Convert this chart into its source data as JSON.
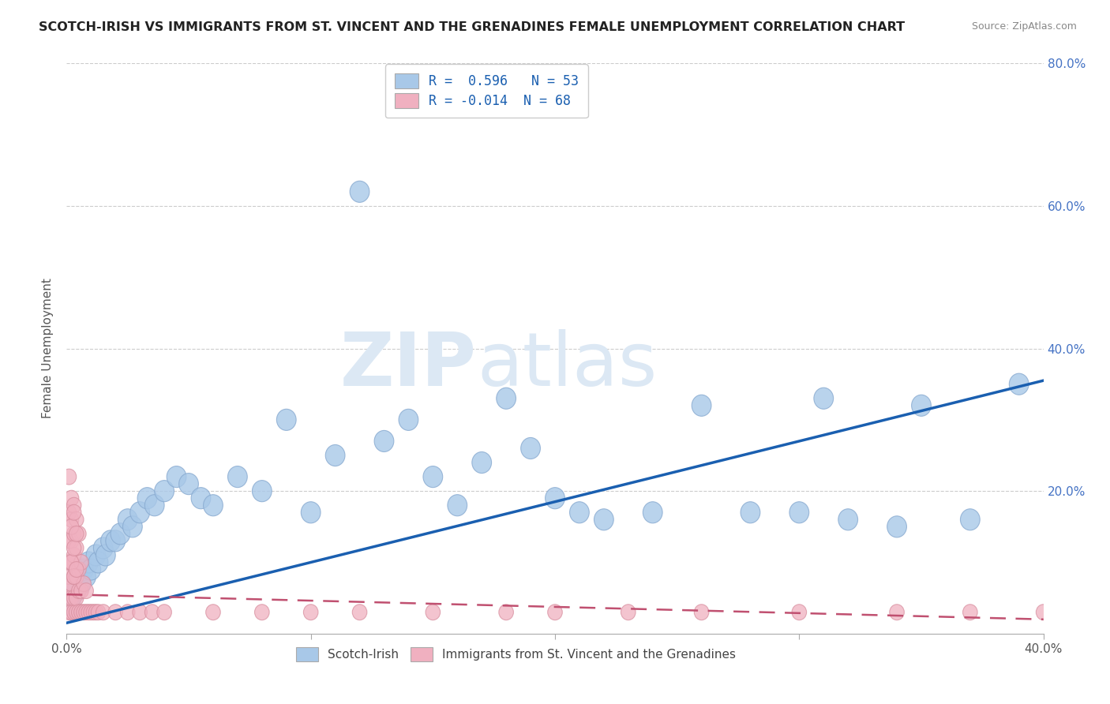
{
  "title": "SCOTCH-IRISH VS IMMIGRANTS FROM ST. VINCENT AND THE GRENADINES FEMALE UNEMPLOYMENT CORRELATION CHART",
  "source": "Source: ZipAtlas.com",
  "ylabel": "Female Unemployment",
  "xlim": [
    0.0,
    0.4
  ],
  "ylim": [
    0.0,
    0.8
  ],
  "ytick_vals": [
    0.0,
    0.2,
    0.4,
    0.6,
    0.8
  ],
  "ytick_labels": [
    "",
    "20.0%",
    "40.0%",
    "60.0%",
    "80.0%"
  ],
  "xtick_vals": [
    0.0,
    0.1,
    0.2,
    0.3,
    0.4
  ],
  "blue_R": 0.596,
  "blue_N": 53,
  "pink_R": -0.014,
  "pink_N": 68,
  "blue_color": "#a8c8e8",
  "blue_edge_color": "#88aad0",
  "blue_line_color": "#1a5fb0",
  "pink_color": "#f0b0c0",
  "pink_edge_color": "#d890a0",
  "pink_line_color": "#c05070",
  "legend_label_blue": "Scotch-Irish",
  "legend_label_pink": "Immigrants from St. Vincent and the Grenadines",
  "blue_scatter_x": [
    0.001,
    0.002,
    0.003,
    0.004,
    0.005,
    0.006,
    0.007,
    0.008,
    0.009,
    0.01,
    0.012,
    0.013,
    0.015,
    0.016,
    0.018,
    0.02,
    0.022,
    0.025,
    0.027,
    0.03,
    0.033,
    0.036,
    0.04,
    0.045,
    0.05,
    0.055,
    0.06,
    0.07,
    0.08,
    0.09,
    0.1,
    0.11,
    0.12,
    0.13,
    0.14,
    0.15,
    0.16,
    0.17,
    0.18,
    0.19,
    0.2,
    0.21,
    0.22,
    0.24,
    0.26,
    0.28,
    0.3,
    0.31,
    0.32,
    0.34,
    0.35,
    0.37,
    0.39
  ],
  "blue_scatter_y": [
    0.04,
    0.05,
    0.07,
    0.06,
    0.08,
    0.07,
    0.09,
    0.08,
    0.1,
    0.09,
    0.11,
    0.1,
    0.12,
    0.11,
    0.13,
    0.13,
    0.14,
    0.16,
    0.15,
    0.17,
    0.19,
    0.18,
    0.2,
    0.22,
    0.21,
    0.19,
    0.18,
    0.22,
    0.2,
    0.3,
    0.17,
    0.25,
    0.62,
    0.27,
    0.3,
    0.22,
    0.18,
    0.24,
    0.33,
    0.26,
    0.19,
    0.17,
    0.16,
    0.17,
    0.32,
    0.17,
    0.17,
    0.33,
    0.16,
    0.15,
    0.32,
    0.16,
    0.35
  ],
  "pink_scatter_x": [
    0.001,
    0.001,
    0.001,
    0.001,
    0.001,
    0.001,
    0.001,
    0.002,
    0.002,
    0.002,
    0.002,
    0.002,
    0.002,
    0.002,
    0.003,
    0.003,
    0.003,
    0.003,
    0.003,
    0.003,
    0.004,
    0.004,
    0.004,
    0.004,
    0.004,
    0.005,
    0.005,
    0.005,
    0.005,
    0.006,
    0.006,
    0.006,
    0.007,
    0.007,
    0.008,
    0.008,
    0.009,
    0.01,
    0.011,
    0.012,
    0.013,
    0.015,
    0.02,
    0.025,
    0.03,
    0.035,
    0.04,
    0.06,
    0.08,
    0.1,
    0.12,
    0.15,
    0.18,
    0.2,
    0.23,
    0.26,
    0.3,
    0.34,
    0.37,
    0.4,
    0.001,
    0.002,
    0.002,
    0.003,
    0.003,
    0.003,
    0.004,
    0.004
  ],
  "pink_scatter_y": [
    0.03,
    0.05,
    0.06,
    0.08,
    0.1,
    0.13,
    0.17,
    0.03,
    0.05,
    0.07,
    0.1,
    0.13,
    0.16,
    0.19,
    0.03,
    0.05,
    0.08,
    0.11,
    0.14,
    0.18,
    0.03,
    0.05,
    0.08,
    0.12,
    0.16,
    0.03,
    0.06,
    0.09,
    0.14,
    0.03,
    0.06,
    0.1,
    0.03,
    0.07,
    0.03,
    0.06,
    0.03,
    0.03,
    0.03,
    0.03,
    0.03,
    0.03,
    0.03,
    0.03,
    0.03,
    0.03,
    0.03,
    0.03,
    0.03,
    0.03,
    0.03,
    0.03,
    0.03,
    0.03,
    0.03,
    0.03,
    0.03,
    0.03,
    0.03,
    0.03,
    0.22,
    0.15,
    0.1,
    0.17,
    0.12,
    0.08,
    0.14,
    0.09
  ]
}
